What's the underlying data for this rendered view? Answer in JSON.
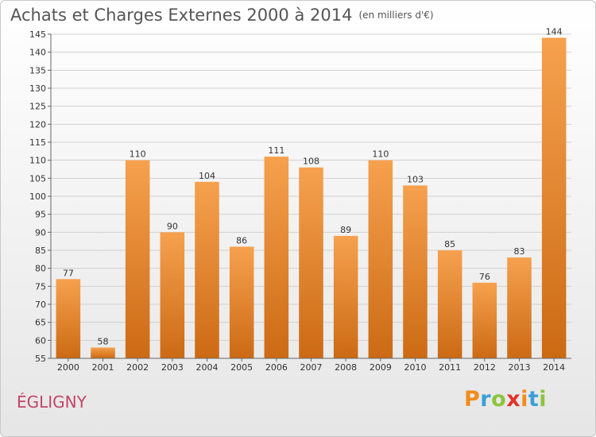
{
  "header": {
    "title": "Achats et Charges Externes 2000 à 2014",
    "unit": "(en milliers d'€)"
  },
  "commune": "ÉGLIGNY",
  "logo": {
    "text": "Proxiti",
    "letters": [
      {
        "ch": "P",
        "color": "#f28c1c"
      },
      {
        "ch": "r",
        "color": "#3aa0d8"
      },
      {
        "ch": "o",
        "color": "#8cc43c"
      },
      {
        "ch": "x",
        "color": "#e2332a"
      },
      {
        "ch": "i",
        "color": "#f28c1c"
      },
      {
        "ch": "t",
        "color": "#3aa0d8"
      },
      {
        "ch": "i",
        "color": "#8cc43c"
      }
    ]
  },
  "chart_data": {
    "type": "bar",
    "categories": [
      "2000",
      "2001",
      "2002",
      "2003",
      "2004",
      "2005",
      "2006",
      "2007",
      "2008",
      "2009",
      "2010",
      "2011",
      "2012",
      "2013",
      "2014"
    ],
    "values": [
      77,
      58,
      110,
      90,
      104,
      86,
      111,
      108,
      89,
      110,
      103,
      85,
      76,
      83,
      144
    ],
    "title": "Achats et Charges Externes 2000 à 2014",
    "ylim": [
      55,
      145
    ],
    "yticks": [
      55,
      60,
      65,
      70,
      75,
      80,
      85,
      90,
      95,
      100,
      105,
      110,
      115,
      120,
      125,
      130,
      135,
      140,
      145
    ],
    "grid": true,
    "bar_color_top": "#f6a14e",
    "bar_color_bottom": "#cc6a14"
  }
}
